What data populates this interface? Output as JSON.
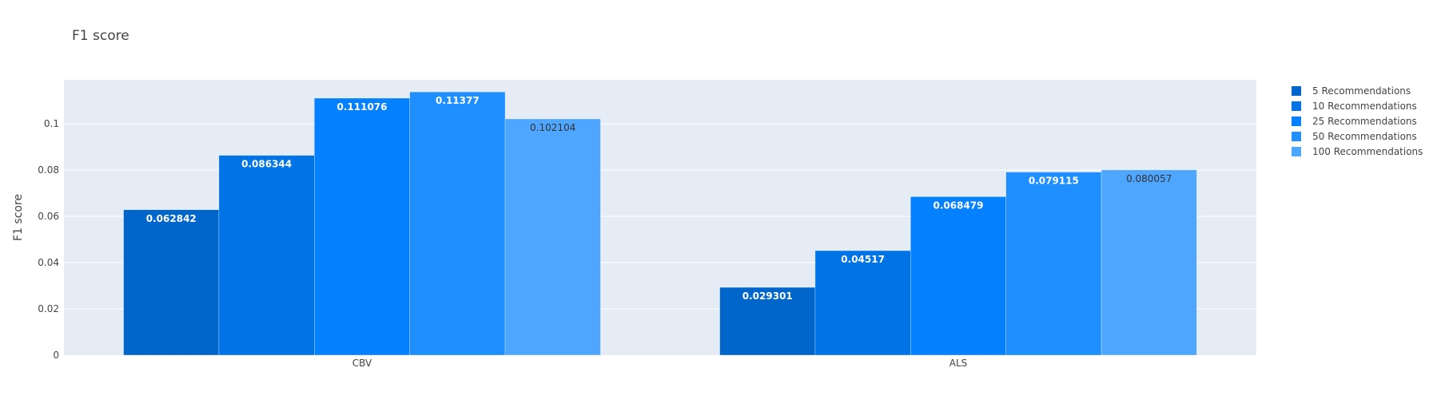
{
  "chart_data": {
    "type": "bar",
    "title": "F1 score",
    "xlabel": "",
    "ylabel": "F1 score",
    "categories": [
      "CBV",
      "ALS"
    ],
    "ylim": [
      0,
      0.119
    ],
    "yticks": [
      0,
      0.02,
      0.04,
      0.06,
      0.08,
      0.1
    ],
    "ytick_labels": [
      "0",
      "0.02",
      "0.04",
      "0.06",
      "0.08",
      "0.1"
    ],
    "grid": true,
    "legend_position": "right",
    "series": [
      {
        "name": "5 Recommendations",
        "values": [
          0.062842,
          0.029301
        ],
        "labels": [
          "0.062842",
          "0.029301"
        ],
        "color": "#0066cc",
        "label_color": "#ffffff"
      },
      {
        "name": "10 Recommendations",
        "values": [
          0.086344,
          0.04517
        ],
        "labels": [
          "0.086344",
          "0.04517"
        ],
        "color": "#0073e6",
        "label_color": "#ffffff"
      },
      {
        "name": "25 Recommendations",
        "values": [
          0.111076,
          0.068479
        ],
        "labels": [
          "0.111076",
          "0.068479"
        ],
        "color": "#0580ff",
        "label_color": "#ffffff"
      },
      {
        "name": "50 Recommendations",
        "values": [
          0.11377,
          0.079115
        ],
        "labels": [
          "0.11377",
          "0.079115"
        ],
        "color": "#1f8fff",
        "label_color": "#ffffff"
      },
      {
        "name": "100 Recommendations",
        "values": [
          0.102104,
          0.080057
        ],
        "labels": [
          "0.102104",
          "0.080057"
        ],
        "color": "#4fa6ff",
        "label_color": "#333333"
      }
    ]
  },
  "colors": {
    "plot_background": "#e5ecf6",
    "gridline": "#ffffff",
    "text": "#444444"
  }
}
